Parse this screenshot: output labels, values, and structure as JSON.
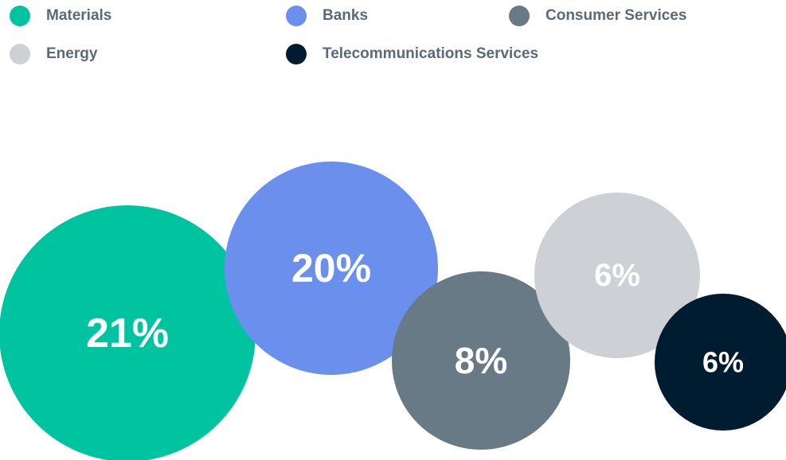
{
  "chart_data": {
    "type": "bubble",
    "legend_position": "top",
    "series": [
      {
        "name": "Materials",
        "value_label": "21%",
        "value": 21,
        "color": "#00c49f"
      },
      {
        "name": "Banks",
        "value_label": "20%",
        "value": 20,
        "color": "#6a8fed"
      },
      {
        "name": "Consumer Services",
        "value_label": "8%",
        "value": 8,
        "color": "#687a86"
      },
      {
        "name": "Energy",
        "value_label": "6%",
        "value": 6,
        "color": "#cdd1d6"
      },
      {
        "name": "Telecommunications Services",
        "value_label": "6%",
        "value": 6,
        "color": "#001c30"
      }
    ]
  }
}
